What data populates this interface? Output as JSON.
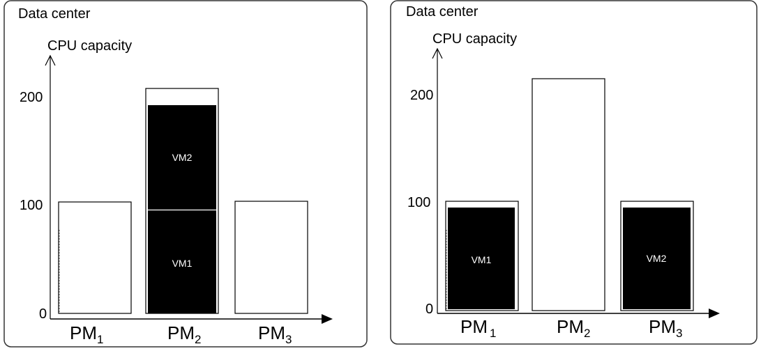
{
  "panels": [
    {
      "title": "Data center",
      "ylabel": "CPU capacity",
      "yticks": [
        "200",
        "100",
        "0"
      ],
      "machines": [
        {
          "label": "PM",
          "sub": "1",
          "capacity": 100,
          "vms": []
        },
        {
          "label": "PM",
          "sub": "2",
          "capacity": 200,
          "vms": [
            {
              "name": "VM1",
              "cpu": 100
            },
            {
              "name": "VM2",
              "cpu": 100
            }
          ]
        },
        {
          "label": "PM",
          "sub": "3",
          "capacity": 100,
          "vms": []
        }
      ]
    },
    {
      "title": "Data center",
      "ylabel": "CPU capacity",
      "yticks": [
        "200",
        "100",
        "0"
      ],
      "machines": [
        {
          "label": "PM",
          "sub": "1",
          "capacity": 100,
          "vms": [
            {
              "name": "VM1",
              "cpu": 100
            }
          ]
        },
        {
          "label": "PM",
          "sub": "2",
          "capacity": 200,
          "vms": []
        },
        {
          "label": "PM",
          "sub": "3",
          "capacity": 100,
          "vms": [
            {
              "name": "VM2",
              "cpu": 100
            }
          ]
        }
      ]
    }
  ]
}
